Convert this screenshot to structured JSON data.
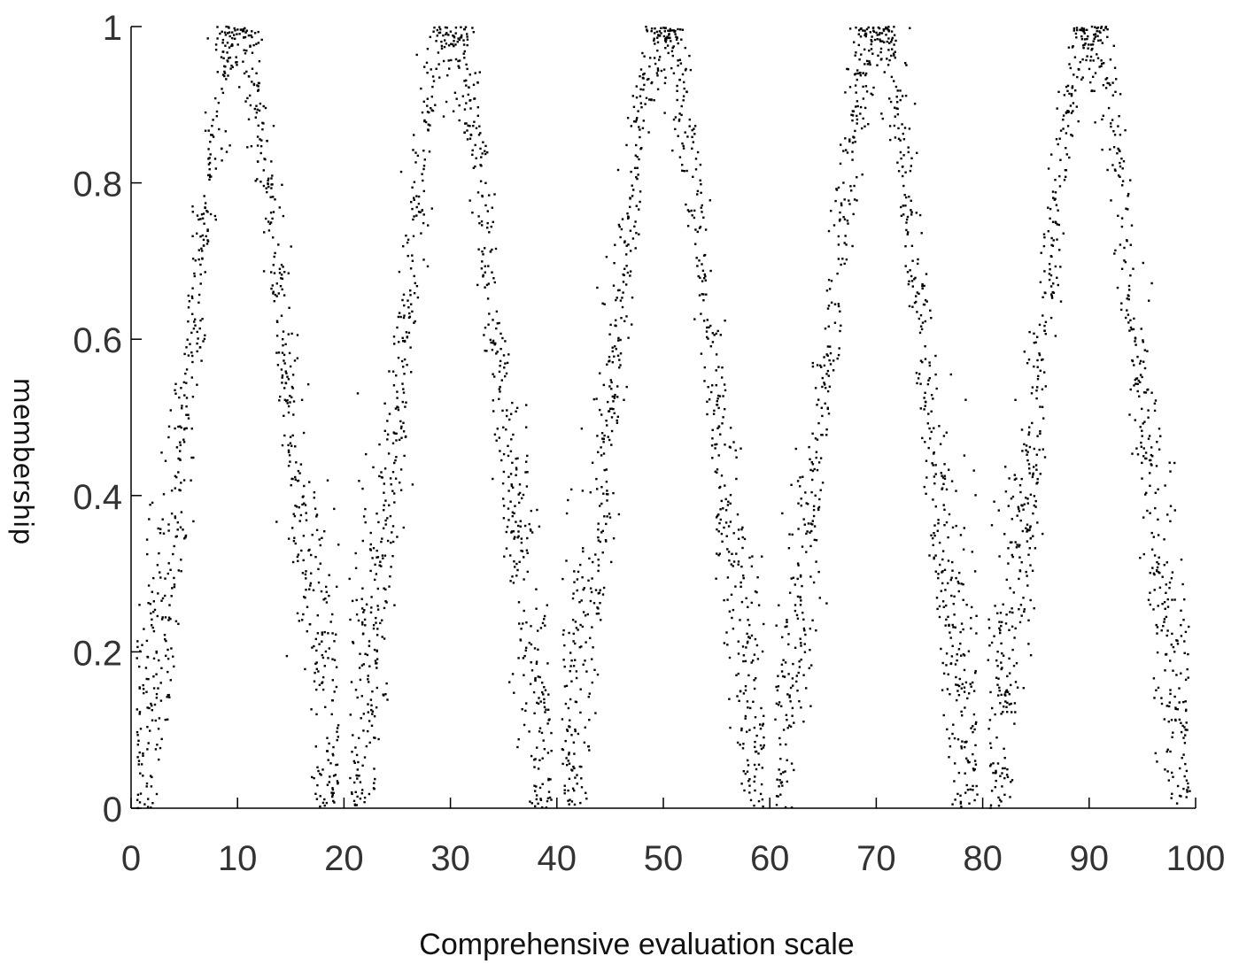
{
  "chart_data": {
    "type": "scatter",
    "title": "",
    "xlabel": "Comprehensive evaluation scale",
    "ylabel": "membership",
    "xlim": [
      0,
      100
    ],
    "ylim": [
      0,
      1
    ],
    "x_ticks": [
      "0",
      "10",
      "20",
      "30",
      "40",
      "50",
      "60",
      "70",
      "80",
      "90",
      "100"
    ],
    "y_ticks": [
      "0",
      "0.2",
      "0.4",
      "0.6",
      "0.8",
      "1"
    ],
    "grid": false,
    "legend": "none",
    "marker_color": "#000000",
    "series": [
      {
        "centers": [
          10,
          30,
          50,
          70,
          90
        ],
        "peak_membership": 1.0,
        "approx_points_per_peak": 800,
        "values": [
          [
            10,
            1.0
          ],
          [
            8,
            0.85
          ],
          [
            12,
            0.85
          ],
          [
            6,
            0.55
          ],
          [
            14,
            0.55
          ],
          [
            4,
            0.3
          ],
          [
            16,
            0.3
          ],
          [
            2,
            0.12
          ],
          [
            18,
            0.1
          ],
          [
            30,
            1.0
          ],
          [
            28,
            0.85
          ],
          [
            32,
            0.85
          ],
          [
            26,
            0.55
          ],
          [
            34,
            0.55
          ],
          [
            24,
            0.3
          ],
          [
            36,
            0.3
          ],
          [
            22,
            0.12
          ],
          [
            38,
            0.1
          ],
          [
            50,
            1.0
          ],
          [
            48,
            0.85
          ],
          [
            52,
            0.85
          ],
          [
            46,
            0.55
          ],
          [
            54,
            0.55
          ],
          [
            44,
            0.3
          ],
          [
            56,
            0.3
          ],
          [
            42,
            0.12
          ],
          [
            58,
            0.1
          ],
          [
            70,
            1.0
          ],
          [
            68,
            0.85
          ],
          [
            72,
            0.85
          ],
          [
            66,
            0.55
          ],
          [
            74,
            0.55
          ],
          [
            64,
            0.3
          ],
          [
            76,
            0.3
          ],
          [
            62,
            0.12
          ],
          [
            78,
            0.1
          ],
          [
            90,
            1.0
          ],
          [
            88,
            0.85
          ],
          [
            92,
            0.85
          ],
          [
            86,
            0.55
          ],
          [
            94,
            0.55
          ],
          [
            84,
            0.3
          ],
          [
            96,
            0.3
          ],
          [
            82,
            0.12
          ],
          [
            98,
            0.1
          ]
        ]
      }
    ]
  }
}
